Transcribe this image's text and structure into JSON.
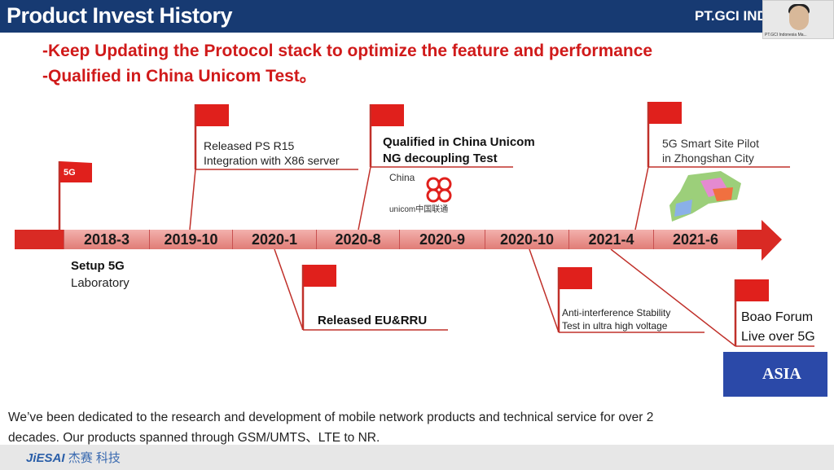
{
  "header": {
    "title": "Product Invest History",
    "brand": "PT.GCI IND"
  },
  "webcam": {
    "name_label": "PT.GCI Indonesia Ma..."
  },
  "bullets": [
    "-Keep Updating the Protocol stack to optimize the feature and performance",
    "-Qualified in China Unicom Test。"
  ],
  "timeline": {
    "dates": [
      "2018-3",
      "2019-10",
      "2020-1",
      "2020-8",
      "2020-9",
      "2020-10",
      "2021-4",
      "2021-6"
    ]
  },
  "milestones": {
    "setup": {
      "flag_label": "5G",
      "line1": "Setup 5G",
      "line2": "Laboratory"
    },
    "ps_r15": {
      "line1": "Released PS R15",
      "line2": "Integration with X86 server"
    },
    "unicom": {
      "line1": "Qualified in China Unicom",
      "line2": "NG decoupling Test",
      "logo_line1": "China",
      "logo_line2": "unicom中国联通"
    },
    "eu_rru": {
      "line1": "Released EU&RRU"
    },
    "anti": {
      "line1": "Anti-interference Stability",
      "line2": "Test in ultra high voltage"
    },
    "smart_site": {
      "line1": "5G Smart Site Pilot",
      "line2": "in Zhongshan City"
    },
    "boao": {
      "line1": "Boao Forum",
      "line2": "Live over 5G",
      "logo_text": "ASIA"
    }
  },
  "description": "We’ve been dedicated to the research and development of mobile network products and technical service for over 2 decades. Our products spanned through GSM/UMTS、LTE to NR.",
  "footer": {
    "logo_latin": "JiESAI",
    "logo_cn": "杰赛",
    "logo_suffix": "科技"
  },
  "colors": {
    "header": "#173a72",
    "accent_red": "#d01a1a"
  }
}
